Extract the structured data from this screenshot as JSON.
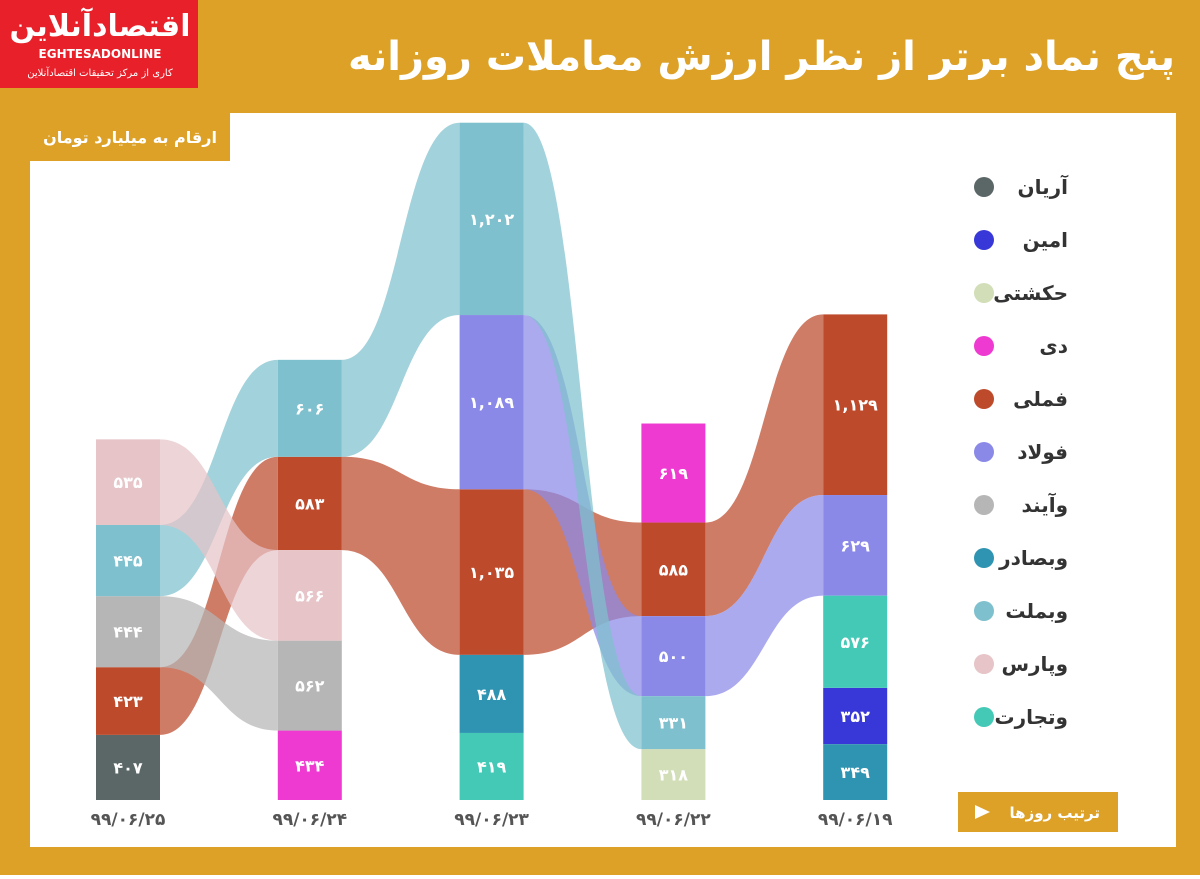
{
  "logo": {
    "name": "اقتصادآنلاین",
    "latin": "EGHTESADONLINE",
    "tagline": "کاری از مرکز تحقیقات اقتصادآنلاین"
  },
  "chart_data": {
    "type": "flow",
    "title": "پنج نماد برتر از نظر ارزش معاملات روزانه",
    "subtitle": "ارقام به میلیارد تومان",
    "note": "ترتیب روزها",
    "categories": [
      "۹۹/۰۶/۲۵",
      "۹۹/۰۶/۲۴",
      "۹۹/۰۶/۲۳",
      "۹۹/۰۶/۲۲",
      "۹۹/۰۶/۱۹"
    ],
    "series": [
      {
        "name": "آریان",
        "color": "#5b6667",
        "values": [
          407,
          null,
          null,
          null,
          null
        ],
        "value_labels": [
          "۴۰۷",
          null,
          null,
          null,
          null
        ]
      },
      {
        "name": "امین",
        "color": "#3838d8",
        "values": [
          null,
          null,
          null,
          null,
          352
        ],
        "value_labels": [
          null,
          null,
          null,
          null,
          "۳۵۲"
        ]
      },
      {
        "name": "حکشتی",
        "color": "#d2deb8",
        "values": [
          null,
          null,
          null,
          318,
          null
        ],
        "value_labels": [
          null,
          null,
          null,
          "۳۱۸",
          null
        ]
      },
      {
        "name": "دی",
        "color": "#ee3ad0",
        "values": [
          null,
          434,
          null,
          619,
          null
        ],
        "value_labels": [
          null,
          "۴۳۴",
          null,
          "۶۱۹",
          null
        ]
      },
      {
        "name": "فملی",
        "color": "#bd4a2b",
        "values": [
          423,
          583,
          1035,
          585,
          1129
        ],
        "value_labels": [
          "۴۲۳",
          "۵۸۳",
          "۱,۰۳۵",
          "۵۸۵",
          "۱,۱۲۹"
        ]
      },
      {
        "name": "فولاد",
        "color": "#8b89e8",
        "values": [
          null,
          null,
          1089,
          500,
          629
        ],
        "value_labels": [
          null,
          null,
          "۱,۰۸۹",
          "۵۰۰",
          "۶۲۹"
        ]
      },
      {
        "name": "وآیند",
        "color": "#b6b6b6",
        "values": [
          444,
          562,
          null,
          null,
          null
        ],
        "value_labels": [
          "۴۴۴",
          "۵۶۲",
          null,
          null,
          null
        ]
      },
      {
        "name": "وبصادر",
        "color": "#2f94b1",
        "values": [
          null,
          null,
          488,
          null,
          349
        ],
        "value_labels": [
          null,
          null,
          "۴۸۸",
          null,
          "۳۴۹"
        ]
      },
      {
        "name": "وبملت",
        "color": "#7ec0cd",
        "values": [
          445,
          606,
          1202,
          331,
          null
        ],
        "value_labels": [
          "۴۴۵",
          "۶۰۶",
          "۱,۲۰۲",
          "۳۳۱",
          null
        ]
      },
      {
        "name": "وپارس",
        "color": "#e6c4c7",
        "values": [
          535,
          566,
          null,
          null,
          null
        ],
        "value_labels": [
          "۵۳۵",
          "۵۶۶",
          null,
          null,
          null
        ]
      },
      {
        "name": "وتجارت",
        "color": "#44c9b7",
        "values": [
          null,
          null,
          419,
          null,
          576
        ],
        "value_labels": [
          null,
          null,
          "۴۱۹",
          null,
          "۵۷۶"
        ]
      }
    ]
  }
}
